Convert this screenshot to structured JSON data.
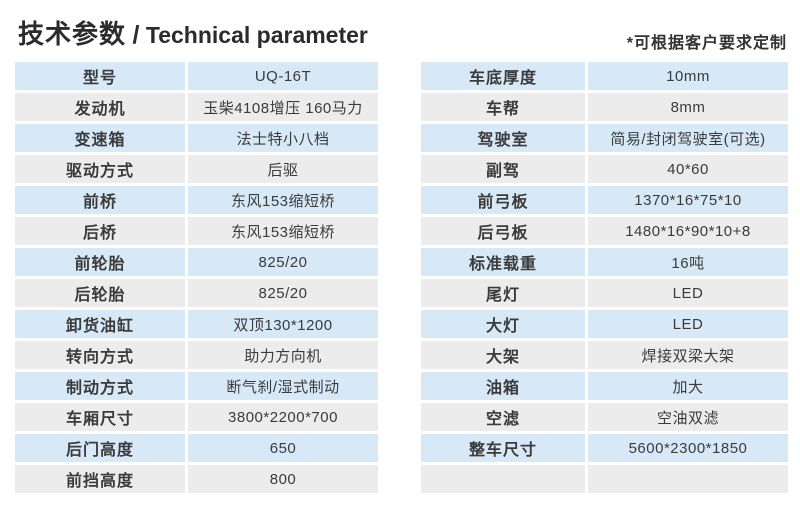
{
  "header": {
    "title_zh": "技术参数",
    "title_sep": "/",
    "title_en": "Technical parameter",
    "note": "*可根据客户要求定制"
  },
  "colors": {
    "row_blue": "#d7e9f7",
    "row_gray": "#ececec",
    "text": "#3b3b3b",
    "title_text": "#2b2b2b"
  },
  "tables": [
    {
      "name": "left",
      "rows": [
        {
          "label": "型号",
          "value": "UQ-16T"
        },
        {
          "label": "发动机",
          "value": "玉柴4108增压 160马力"
        },
        {
          "label": "变速箱",
          "value": "法士特小八档"
        },
        {
          "label": "驱动方式",
          "value": "后驱"
        },
        {
          "label": "前桥",
          "value": "东风153缩短桥"
        },
        {
          "label": "后桥",
          "value": "东风153缩短桥"
        },
        {
          "label": "前轮胎",
          "value": "825/20"
        },
        {
          "label": "后轮胎",
          "value": "825/20"
        },
        {
          "label": "卸货油缸",
          "value": "双顶130*1200"
        },
        {
          "label": "转向方式",
          "value": "助力方向机"
        },
        {
          "label": "制动方式",
          "value": "断气刹/湿式制动"
        },
        {
          "label": "车厢尺寸",
          "value": "3800*2200*700"
        },
        {
          "label": "后门高度",
          "value": "650"
        },
        {
          "label": "前挡高度",
          "value": "800"
        }
      ]
    },
    {
      "name": "right",
      "rows": [
        {
          "label": "车底厚度",
          "value": "10mm"
        },
        {
          "label": "车帮",
          "value": "8mm"
        },
        {
          "label": "驾驶室",
          "value": "简易/封闭驾驶室(可选)"
        },
        {
          "label": "副驾",
          "value": "40*60"
        },
        {
          "label": "前弓板",
          "value": "1370*16*75*10"
        },
        {
          "label": "后弓板",
          "value": "1480*16*90*10+8"
        },
        {
          "label": "标准载重",
          "value": "16吨"
        },
        {
          "label": "尾灯",
          "value": "LED"
        },
        {
          "label": "大灯",
          "value": "LED"
        },
        {
          "label": "大架",
          "value": "焊接双梁大架"
        },
        {
          "label": "油箱",
          "value": "加大"
        },
        {
          "label": "空滤",
          "value": "空油双滤"
        },
        {
          "label": "整车尺寸",
          "value": "5600*2300*1850"
        },
        {
          "label": "",
          "value": ""
        }
      ]
    }
  ]
}
